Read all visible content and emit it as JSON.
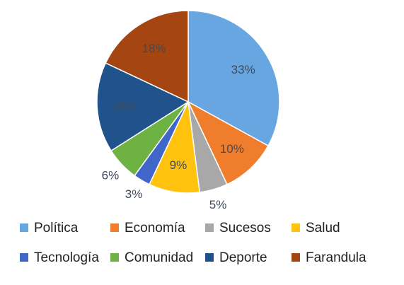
{
  "chart_data": {
    "type": "pie",
    "title": "",
    "legend_position": "bottom",
    "slices": [
      {
        "label": "Política",
        "value": 33,
        "value_label": "33%",
        "color": "#67A6E0"
      },
      {
        "label": "Economía",
        "value": 10,
        "value_label": "10%",
        "color": "#F07D2C"
      },
      {
        "label": "Sucesos",
        "value": 5,
        "value_label": "5%",
        "color": "#A8A8A8"
      },
      {
        "label": "Salud",
        "value": 9,
        "value_label": "9%",
        "color": "#FFC20E"
      },
      {
        "label": "Tecnología",
        "value": 3,
        "value_label": "3%",
        "color": "#3F66C8"
      },
      {
        "label": "Comunidad",
        "value": 6,
        "value_label": "6%",
        "color": "#6FB244"
      },
      {
        "label": "Deporte",
        "value": 16,
        "value_label": "16%",
        "color": "#20538C"
      },
      {
        "label": "Farandula",
        "value": 18,
        "value_label": "18%",
        "color": "#A54511"
      }
    ]
  }
}
